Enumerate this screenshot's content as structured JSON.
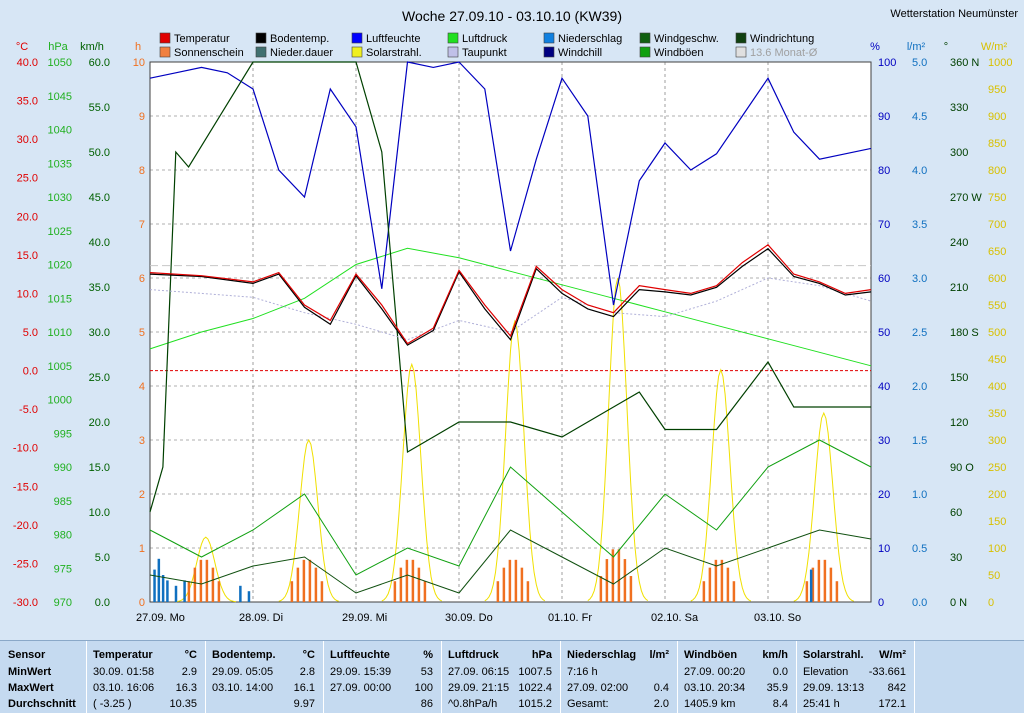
{
  "title": "Woche 27.09.10 - 03.10.10 (KW39)",
  "station": "Wetterstation Neumünster",
  "colors": {
    "temp": "#e00000",
    "dew": "#a0a0d0",
    "pressure": "#20c020",
    "humidity": "#0000a0",
    "soil": "#000000",
    "solar": "#f0e000",
    "sun": "#f07020",
    "rain": "#1070c0",
    "gust": "#00a000",
    "wind": "#005000",
    "winddir": "#004000",
    "grid": "#606060"
  },
  "legend": [
    {
      "label": "Temperatur",
      "color": "#e00000"
    },
    {
      "label": "Bodentemp.",
      "color": "#000000"
    },
    {
      "label": "Luftfeuchte",
      "color": "#0000ff"
    },
    {
      "label": "Luftdruck",
      "color": "#20e020"
    },
    {
      "label": "Niederschlag",
      "color": "#1080e0"
    },
    {
      "label": "Windgeschw.",
      "color": "#106010"
    },
    {
      "label": "Windrichtung",
      "color": "#104010"
    },
    {
      "label": "Sonnenschein",
      "color": "#f08040"
    },
    {
      "label": "Nieder.dauer",
      "color": "#407070"
    },
    {
      "label": "Solarstrahl.",
      "color": "#f0f020"
    },
    {
      "label": "Taupunkt",
      "color": "#c0c0e8"
    },
    {
      "label": "Windchill",
      "color": "#000080"
    },
    {
      "label": "Windböen",
      "color": "#10a010"
    },
    {
      "label": "13.6 Monat-Ø",
      "color": "#e0e0e0"
    }
  ],
  "axes": {
    "temp_unit": "°C",
    "hpa_unit": "hPa",
    "kmh_unit": "km/h",
    "h_unit": "h",
    "pct_unit": "%",
    "lm2_unit": "l/m²",
    "deg_unit": "°",
    "wm2_unit": "W/m²",
    "temp_ticks": [
      "40.0",
      "35.0",
      "30.0",
      "25.0",
      "20.0",
      "15.0",
      "10.0",
      "5.0",
      "0.0",
      "-5.0",
      "-10.0",
      "-15.0",
      "-20.0",
      "-25.0",
      "-30.0"
    ],
    "hpa_ticks": [
      "1050",
      "1045",
      "1040",
      "1035",
      "1030",
      "1025",
      "1020",
      "1015",
      "1010",
      "1005",
      "1000",
      "995",
      "990",
      "985",
      "980",
      "975",
      "970"
    ],
    "kmh_ticks": [
      "60.0",
      "55.0",
      "50.0",
      "45.0",
      "40.0",
      "35.0",
      "30.0",
      "25.0",
      "20.0",
      "15.0",
      "10.0",
      "5.0",
      "0.0"
    ],
    "h_ticks": [
      "10",
      "9",
      "8",
      "7",
      "6",
      "5",
      "4",
      "3",
      "2",
      "1",
      "0"
    ],
    "pct_ticks": [
      "100",
      "90",
      "80",
      "70",
      "60",
      "50",
      "40",
      "30",
      "20",
      "10",
      "0"
    ],
    "lm2_ticks": [
      "5.0",
      "4.5",
      "4.0",
      "3.5",
      "3.0",
      "2.5",
      "2.0",
      "1.5",
      "1.0",
      "0.5",
      "0.0"
    ],
    "deg_ticks": [
      "360 N",
      "330",
      "300",
      "270 W",
      "240",
      "210",
      "180 S",
      "150",
      "120",
      "90 O",
      "60",
      "30",
      "0 N"
    ],
    "wm2_ticks": [
      "1000",
      "950",
      "900",
      "850",
      "800",
      "750",
      "700",
      "650",
      "600",
      "550",
      "500",
      "450",
      "400",
      "350",
      "300",
      "250",
      "200",
      "150",
      "100",
      "50",
      "0"
    ],
    "day_labels": [
      "27.09.  Mo",
      "28.09.  Di",
      "29.09.  Mi",
      "30.09.  Do",
      "01.10.  Fr",
      "02.10.  Sa",
      "03.10.  So"
    ]
  },
  "chart_data": {
    "type": "line",
    "title": "Woche 27.09.10 - 03.10.10 (KW39)",
    "x_range": [
      "27.09.10 00:00",
      "04.10.10 00:00"
    ],
    "ylim_temp": [
      -30,
      40
    ],
    "ylim_pressure": [
      970,
      1050
    ],
    "ylim_humidity": [
      0,
      100
    ],
    "ylim_wind": [
      0,
      60
    ],
    "ylim_solar": [
      0,
      1000
    ],
    "ylim_rain": [
      0,
      5
    ],
    "ylim_winddir": [
      0,
      360
    ],
    "monthly_avg_temp": 13.6,
    "series": [
      {
        "name": "Temperatur",
        "x_hours": [
          0,
          12,
          24,
          30,
          36,
          42,
          48,
          54,
          60,
          66,
          72,
          78,
          84,
          90,
          96,
          102,
          108,
          114,
          120,
          126,
          132,
          138,
          144,
          150,
          156,
          162,
          168
        ],
        "values": [
          12.7,
          12.3,
          11.5,
          12.7,
          8.5,
          6.5,
          12.5,
          8.5,
          3.5,
          5.5,
          13.0,
          8.5,
          4.5,
          13.5,
          10.5,
          8.5,
          7.5,
          11.0,
          10.5,
          10.0,
          11.0,
          14.0,
          16.3,
          12.5,
          11.5,
          10.0,
          10.5
        ]
      },
      {
        "name": "Bodentemp.",
        "x_hours": [
          0,
          12,
          24,
          30,
          36,
          42,
          48,
          54,
          60,
          66,
          72,
          78,
          84,
          90,
          96,
          102,
          108,
          114,
          120,
          126,
          132,
          138,
          144,
          150,
          156,
          162,
          168
        ],
        "values": [
          12.5,
          12.2,
          11.3,
          12.5,
          8.2,
          6.0,
          12.3,
          8.0,
          3.3,
          5.2,
          12.8,
          8.0,
          4.0,
          13.2,
          10.0,
          8.0,
          7.0,
          10.5,
          10.2,
          9.8,
          10.8,
          13.5,
          15.8,
          12.2,
          11.3,
          9.8,
          10.2
        ]
      },
      {
        "name": "Taupunkt",
        "x_hours": [
          0,
          12,
          24,
          36,
          48,
          60,
          72,
          84,
          96,
          108,
          120,
          132,
          144,
          156,
          168
        ],
        "values": [
          10.5,
          10.0,
          9.5,
          7.5,
          6.0,
          4.0,
          6.5,
          5.0,
          9.5,
          7.5,
          7.0,
          9.0,
          12.0,
          11.0,
          9.0
        ]
      },
      {
        "name": "Luftdruck",
        "x_hours": [
          0,
          12,
          24,
          36,
          48,
          60,
          72,
          84,
          96,
          108,
          120,
          132,
          144,
          156,
          168
        ],
        "values": [
          1007.5,
          1010,
          1012,
          1015,
          1020,
          1022.4,
          1021,
          1019,
          1017,
          1015,
          1013,
          1011,
          1009,
          1007,
          1005
        ]
      },
      {
        "name": "Luftfeuchte",
        "x_hours": [
          0,
          6,
          12,
          18,
          24,
          30,
          36,
          42,
          48,
          54,
          60,
          66,
          72,
          78,
          84,
          90,
          96,
          102,
          108,
          114,
          120,
          126,
          132,
          138,
          144,
          150,
          156,
          162,
          168
        ],
        "values": [
          97,
          98,
          99,
          98,
          95,
          80,
          75,
          95,
          88,
          58,
          100,
          99,
          100,
          95,
          65,
          82,
          97,
          90,
          55,
          78,
          85,
          80,
          83,
          90,
          97,
          87,
          82,
          83,
          84
        ]
      },
      {
        "name": "Windböen",
        "x_hours": [
          0,
          12,
          24,
          36,
          48,
          60,
          72,
          84,
          96,
          108,
          120,
          132,
          144,
          156,
          168
        ],
        "values": [
          8,
          5,
          8,
          12,
          3,
          6,
          4,
          15,
          10,
          5,
          12,
          8,
          15,
          18,
          15
        ]
      },
      {
        "name": "Windgeschw.",
        "x_hours": [
          0,
          12,
          24,
          36,
          48,
          60,
          72,
          84,
          96,
          108,
          120,
          132,
          144,
          156,
          168
        ],
        "values": [
          3,
          2,
          4,
          5,
          1,
          3,
          1,
          8,
          5,
          2,
          6,
          4,
          6,
          8,
          7
        ]
      },
      {
        "name": "Solarstrahl.",
        "peaks_hour": [
          13,
          37,
          61,
          85,
          109,
          133,
          157
        ],
        "values": [
          120,
          300,
          440,
          520,
          600,
          430,
          350
        ]
      },
      {
        "name": "Windrichtung",
        "x_hours": [
          0,
          3,
          6,
          9,
          24,
          36,
          48,
          54,
          60,
          66,
          72,
          84,
          96,
          108,
          114,
          120,
          132,
          144,
          150,
          156,
          168
        ],
        "values": [
          60,
          90,
          300,
          290,
          360,
          360,
          360,
          300,
          100,
          110,
          120,
          120,
          110,
          130,
          140,
          115,
          115,
          160,
          130,
          130,
          130
        ]
      }
    ],
    "stats_sensors": [
      "Temperatur",
      "Bodentemp.",
      "Luftfeuchte",
      "Luftdruck",
      "Niederschlag",
      "Windböen",
      "Solarstrahl."
    ]
  },
  "stats": {
    "sensor_header": "Sensor",
    "row_labels": [
      "MinWert",
      "MaxWert",
      "Durchschnitt"
    ],
    "columns": [
      {
        "title": "Temperatur",
        "unit": "°C",
        "rows": [
          [
            "30.09.  01:58",
            "2.9"
          ],
          [
            "03.10.  16:06",
            "16.3"
          ],
          [
            "( -3.25 )",
            "10.35"
          ]
        ]
      },
      {
        "title": "Bodentemp.",
        "unit": "°C",
        "rows": [
          [
            "29.09.  05:05",
            "2.8"
          ],
          [
            "03.10.  14:00",
            "16.1"
          ],
          [
            "",
            "9.97"
          ]
        ]
      },
      {
        "title": "Luftfeuchte",
        "unit": "%",
        "rows": [
          [
            "29.09.  15:39",
            "53"
          ],
          [
            "27.09.  00:00",
            "100"
          ],
          [
            "",
            "86"
          ]
        ]
      },
      {
        "title": "Luftdruck",
        "unit": "hPa",
        "rows": [
          [
            "27.09.  06:15",
            "1007.5"
          ],
          [
            "29.09.  21:15",
            "1022.4"
          ],
          [
            "^0.8hPa/h",
            "1015.2"
          ]
        ]
      },
      {
        "title": "Niederschlag",
        "unit": "l/m²",
        "rows": [
          [
            "7:16 h",
            ""
          ],
          [
            "27.09.  02:00",
            "0.4"
          ],
          [
            "Gesamt:",
            "2.0"
          ]
        ]
      },
      {
        "title": "Windböen",
        "unit": "km/h",
        "rows": [
          [
            "27.09.  00:20",
            "0.0"
          ],
          [
            "03.10.  20:34",
            "35.9"
          ],
          [
            "1405.9 km",
            "8.4"
          ]
        ]
      },
      {
        "title": "Solarstrahl.",
        "unit": "W/m²",
        "rows": [
          [
            "Elevation",
            "-33.661"
          ],
          [
            "29.09.  13:13",
            "842"
          ],
          [
            "25:41 h",
            "172.1"
          ]
        ]
      }
    ]
  }
}
